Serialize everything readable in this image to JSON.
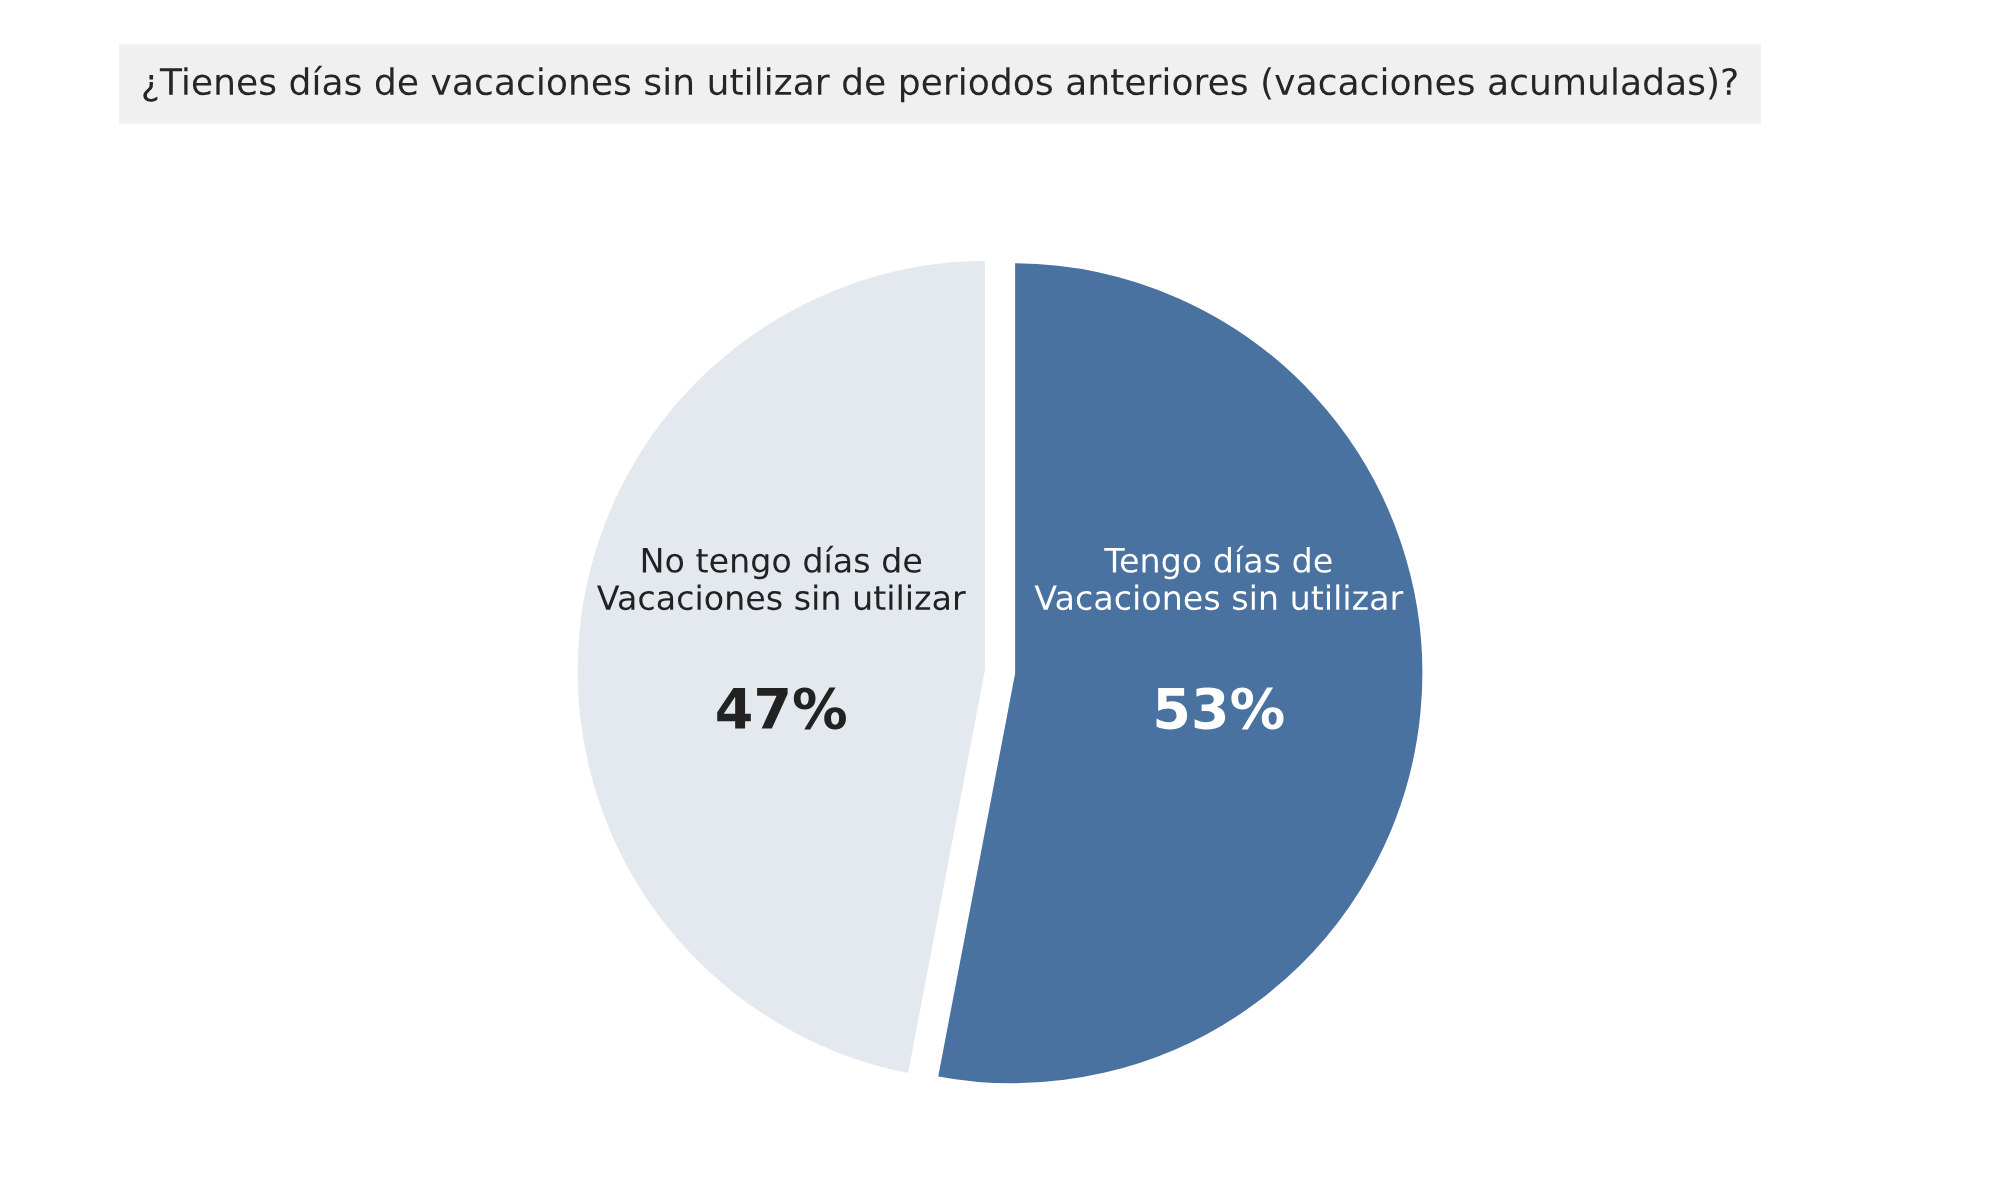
{
  "chart_data": {
    "type": "pie",
    "title": "¿Tienes días de vacaciones sin utilizar de periodos anteriores (vacaciones acumuladas)?",
    "categories": [
      "Tengo días de\nVacaciones sin utilizar",
      "No tengo días de\nVacaciones sin utilizar"
    ],
    "values": [
      53,
      47
    ],
    "value_labels": [
      "53%",
      "47%"
    ],
    "colors": [
      "#4a72a0",
      "#e4e8ef"
    ],
    "legend": false
  }
}
